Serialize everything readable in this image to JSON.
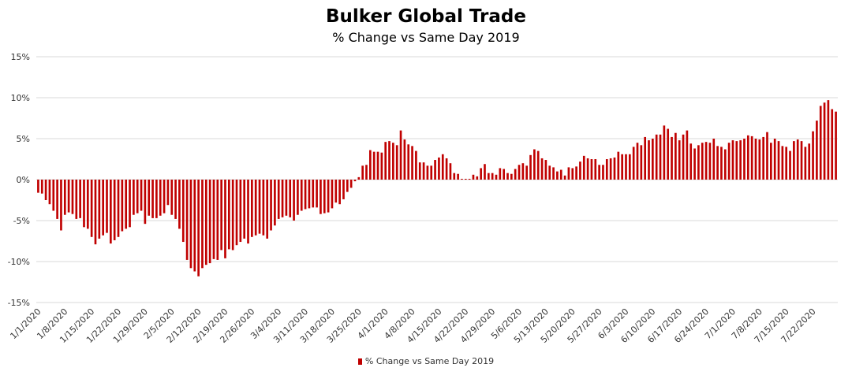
{
  "chart_data": {
    "type": "bar",
    "title": "Bulker Global Trade",
    "subtitle": "% Change vs Same Day 2019",
    "xlabel": "",
    "ylabel": "",
    "ylim": [
      -0.15,
      0.15
    ],
    "yticks": [
      {
        "value": 0.15,
        "label": "15%"
      },
      {
        "value": 0.1,
        "label": "10%"
      },
      {
        "value": 0.05,
        "label": "5%"
      },
      {
        "value": 0.0,
        "label": "0%"
      },
      {
        "value": -0.05,
        "label": "-5%"
      },
      {
        "value": -0.1,
        "label": "-10%"
      },
      {
        "value": -0.15,
        "label": "-15%"
      }
    ],
    "grid": true,
    "legend": "bottom",
    "color": "#c00000",
    "x_start": "1/1/2020",
    "x_tick_labels": [
      "1/1/2020",
      "1/8/2020",
      "1/15/2020",
      "1/22/2020",
      "1/29/2020",
      "2/5/2020",
      "2/12/2020",
      "2/19/2020",
      "2/26/2020",
      "3/4/2020",
      "3/11/2020",
      "3/18/2020",
      "3/25/2020",
      "4/1/2020",
      "4/8/2020",
      "4/15/2020",
      "4/22/2020",
      "4/29/2020",
      "5/6/2020",
      "5/13/2020",
      "5/20/2020",
      "5/27/2020",
      "6/3/2020",
      "6/10/2020",
      "6/17/2020",
      "6/24/2020",
      "7/1/2020",
      "7/8/2020",
      "7/15/2020",
      "7/22/2020"
    ],
    "series": [
      {
        "name": "% Change vs Same Day 2019",
        "values": [
          -0.016,
          -0.017,
          -0.025,
          -0.03,
          -0.038,
          -0.048,
          -0.062,
          -0.043,
          -0.04,
          -0.042,
          -0.048,
          -0.047,
          -0.058,
          -0.06,
          -0.07,
          -0.079,
          -0.072,
          -0.068,
          -0.065,
          -0.078,
          -0.074,
          -0.07,
          -0.063,
          -0.06,
          -0.058,
          -0.043,
          -0.041,
          -0.038,
          -0.054,
          -0.044,
          -0.047,
          -0.047,
          -0.044,
          -0.041,
          -0.031,
          -0.043,
          -0.048,
          -0.06,
          -0.076,
          -0.098,
          -0.108,
          -0.112,
          -0.118,
          -0.108,
          -0.104,
          -0.102,
          -0.097,
          -0.098,
          -0.086,
          -0.096,
          -0.085,
          -0.086,
          -0.08,
          -0.076,
          -0.072,
          -0.078,
          -0.07,
          -0.068,
          -0.066,
          -0.068,
          -0.072,
          -0.062,
          -0.056,
          -0.048,
          -0.046,
          -0.044,
          -0.046,
          -0.05,
          -0.043,
          -0.038,
          -0.036,
          -0.035,
          -0.034,
          -0.034,
          -0.042,
          -0.041,
          -0.04,
          -0.035,
          -0.028,
          -0.03,
          -0.024,
          -0.015,
          -0.01,
          -0.002,
          0.003,
          0.017,
          0.018,
          0.036,
          0.034,
          0.034,
          0.033,
          0.046,
          0.047,
          0.045,
          0.042,
          0.06,
          0.049,
          0.043,
          0.041,
          0.035,
          0.021,
          0.021,
          0.017,
          0.017,
          0.024,
          0.027,
          0.031,
          0.026,
          0.02,
          0.008,
          0.007,
          0.001,
          0.001,
          0.001,
          0.006,
          0.004,
          0.014,
          0.019,
          0.008,
          0.008,
          0.006,
          0.014,
          0.013,
          0.008,
          0.007,
          0.013,
          0.018,
          0.02,
          0.017,
          0.03,
          0.037,
          0.035,
          0.026,
          0.024,
          0.017,
          0.015,
          0.01,
          0.012,
          0.005,
          0.015,
          0.014,
          0.016,
          0.022,
          0.029,
          0.026,
          0.025,
          0.025,
          0.018,
          0.018,
          0.025,
          0.026,
          0.027,
          0.034,
          0.031,
          0.031,
          0.031,
          0.04,
          0.045,
          0.042,
          0.052,
          0.048,
          0.05,
          0.055,
          0.055,
          0.066,
          0.062,
          0.052,
          0.057,
          0.048,
          0.055,
          0.06,
          0.044,
          0.038,
          0.042,
          0.045,
          0.046,
          0.045,
          0.05,
          0.041,
          0.04,
          0.037,
          0.045,
          0.048,
          0.047,
          0.048,
          0.05,
          0.054,
          0.053,
          0.05,
          0.049,
          0.052,
          0.058,
          0.045,
          0.05,
          0.047,
          0.041,
          0.04,
          0.035,
          0.047,
          0.049,
          0.047,
          0.04,
          0.044,
          0.059,
          0.072,
          0.09,
          0.094,
          0.097,
          0.086,
          0.083
        ]
      }
    ]
  }
}
